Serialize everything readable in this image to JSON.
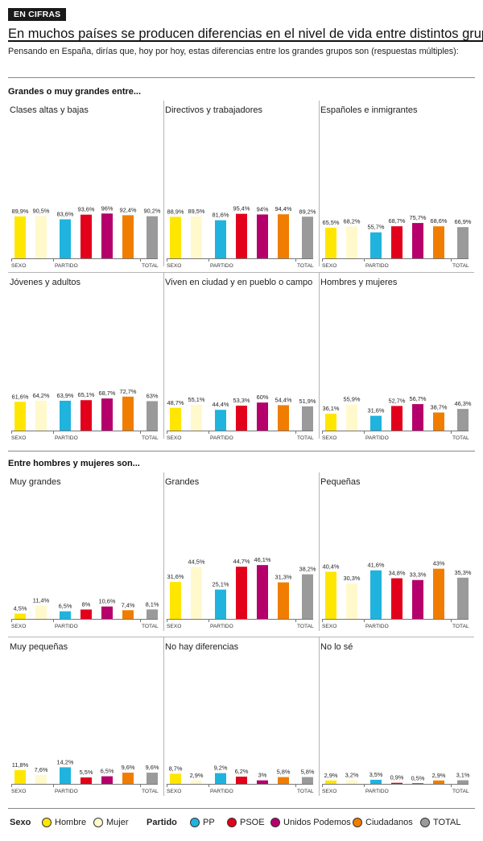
{
  "header": {
    "badge": "EN CIFRAS",
    "title": "En muchos países se producen diferencias en el nivel de vida entre distintos grupos",
    "subtitle": "Pensando en España, dirías que, hoy por hoy, estas diferencias entre los grandes grupos son (respuestas múltiples):"
  },
  "colors": {
    "Hombre": "#ffe600",
    "Mujer": "#fff9cc",
    "PP": "#1fb3de",
    "PSOE": "#e3001b",
    "Unidos Podemos": "#b5006b",
    "Ciudadanos": "#f07d00",
    "TOTAL": "#9a9a9a"
  },
  "group_labels": {
    "sexo": "SEXO",
    "partido": "PARTIDO",
    "total": "TOTAL"
  },
  "series_keys": [
    "Hombre",
    "Mujer",
    "PP",
    "PSOE",
    "Unidos Podemos",
    "Ciudadanos",
    "TOTAL"
  ],
  "chart_data": [
    {
      "type": "bar",
      "section_title": "Grandes o muy grandes entre...",
      "panels": [
        {
          "title": "Clases altas y bajas",
          "values": [
            89.9,
            90.5,
            83.6,
            93.6,
            96,
            92.4,
            90.2
          ],
          "labels": [
            "89,9%",
            "90,5%",
            "83,6%",
            "93,6%",
            "96%",
            "92,4%",
            "90,2%"
          ]
        },
        {
          "title": "Directivos y trabajadores",
          "values": [
            88.9,
            89.5,
            81.6,
            95.4,
            94,
            94.4,
            89.2
          ],
          "labels": [
            "88,9%",
            "89,5%",
            "81,6%",
            "95,4%",
            "94%",
            "94,4%",
            "89,2%"
          ]
        },
        {
          "title": "Españoles e inmigrantes",
          "values": [
            65.5,
            68.2,
            55.7,
            68.7,
            75.7,
            68.6,
            66.9
          ],
          "labels": [
            "65,5%",
            "68,2%",
            "55,7%",
            "68,7%",
            "75,7%",
            "68,6%",
            "66,9%"
          ]
        },
        {
          "title": "Jóvenes y adultos",
          "values": [
            61.6,
            64.2,
            63.9,
            65.1,
            68.7,
            72.7,
            63
          ],
          "labels": [
            "61,6%",
            "64,2%",
            "63,9%",
            "65,1%",
            "68,7%",
            "72,7%",
            "63%"
          ]
        },
        {
          "title": "Viven en ciudad y en pueblo o campo",
          "values": [
            48.7,
            55.1,
            44.4,
            53.3,
            60,
            54.4,
            51.9
          ],
          "labels": [
            "48,7%",
            "55,1%",
            "44,4%",
            "53,3%",
            "60%",
            "54,4%",
            "51,9%"
          ]
        },
        {
          "title": "Hombres y mujeres",
          "values": [
            36.1,
            55.9,
            31.6,
            52.7,
            56.7,
            38.7,
            46.3
          ],
          "labels": [
            "36,1%",
            "55,9%",
            "31,6%",
            "52,7%",
            "56,7%",
            "38,7%",
            "46,3%"
          ]
        }
      ]
    },
    {
      "type": "bar",
      "section_title": "Entre hombres y mujeres son...",
      "panels": [
        {
          "title": "Muy grandes",
          "values": [
            4.5,
            11.4,
            6.5,
            8,
            10.6,
            7.4,
            8.1
          ],
          "labels": [
            "4,5%",
            "11,4%",
            "6,5%",
            "8%",
            "10,6%",
            "7,4%",
            "8,1%"
          ]
        },
        {
          "title": "Grandes",
          "values": [
            31.6,
            44.5,
            25.1,
            44.7,
            46.1,
            31.3,
            38.2
          ],
          "labels": [
            "31,6%",
            "44,5%",
            "25,1%",
            "44,7%",
            "46,1%",
            "31,3%",
            "38,2%"
          ]
        },
        {
          "title": "Pequeñas",
          "values": [
            40.4,
            30.3,
            41.6,
            34.8,
            33.3,
            43,
            35.3
          ],
          "labels": [
            "40,4%",
            "30,3%",
            "41,6%",
            "34,8%",
            "33,3%",
            "43%",
            "35,3%"
          ]
        },
        {
          "title": "Muy pequeñas",
          "values": [
            11.8,
            7.6,
            14.2,
            5.5,
            6.5,
            9.6,
            9.6
          ],
          "labels": [
            "11,8%",
            "7,6%",
            "14,2%",
            "5,5%",
            "6,5%",
            "9,6%",
            "9,6%"
          ]
        },
        {
          "title": "No hay diferencias",
          "values": [
            8.7,
            2.9,
            9.2,
            6.2,
            3,
            5.8,
            5.8
          ],
          "labels": [
            "8,7%",
            "2,9%",
            "9,2%",
            "6,2%",
            "3%",
            "5,8%",
            "5,8%"
          ]
        },
        {
          "title": "No lo sé",
          "values": [
            2.9,
            3.2,
            3.5,
            0.9,
            0.5,
            2.9,
            3.1
          ],
          "labels": [
            "2,9%",
            "3,2%",
            "3,5%",
            "0,9%",
            "0,5%",
            "2,9%",
            "3,1%"
          ]
        }
      ]
    }
  ],
  "legend": {
    "sexo_title": "Sexo",
    "partido_title": "Partido",
    "items": [
      "Hombre",
      "Mujer",
      "PP",
      "PSOE",
      "Unidos Podemos",
      "Ciudadanos",
      "TOTAL"
    ]
  }
}
